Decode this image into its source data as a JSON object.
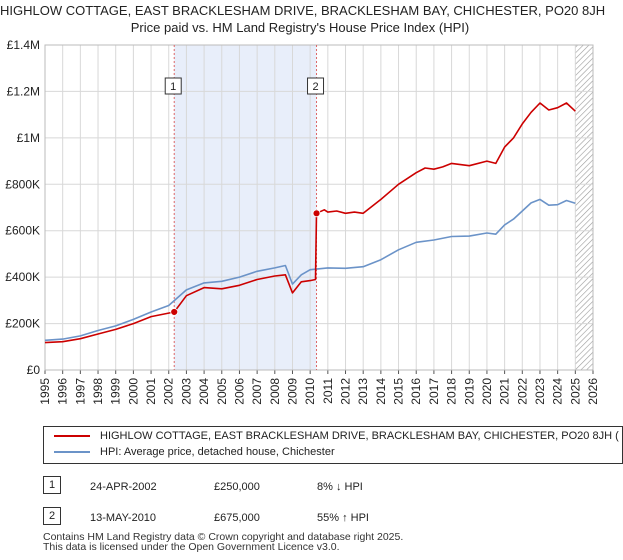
{
  "title": "HIGHLOW COTTAGE, EAST BRACKLESHAM DRIVE, BRACKLESHAM BAY, CHICHESTER, PO20 8JH",
  "subtitle": "Price paid vs. HM Land Registry's House Price Index (HPI)",
  "colors": {
    "property": "#cc0000",
    "hpi": "#6b93c8",
    "shade": "#e8eefa",
    "grid": "#d8d8d8",
    "marker_line": "#dd6666"
  },
  "chart_data": {
    "type": "line",
    "xlim": [
      1995,
      2026
    ],
    "ylim": [
      0,
      1400000
    ],
    "x_ticks": [
      "1995",
      "1996",
      "1997",
      "1998",
      "1999",
      "2000",
      "2001",
      "2002",
      "2003",
      "2004",
      "2005",
      "2006",
      "2007",
      "2008",
      "2009",
      "2010",
      "2011",
      "2012",
      "2013",
      "2014",
      "2015",
      "2016",
      "2017",
      "2018",
      "2019",
      "2020",
      "2021",
      "2022",
      "2023",
      "2024",
      "2025",
      "2026"
    ],
    "y_ticks": [
      {
        "value": 0,
        "label": "£0"
      },
      {
        "value": 200000,
        "label": "£200K"
      },
      {
        "value": 400000,
        "label": "£400K"
      },
      {
        "value": 600000,
        "label": "£600K"
      },
      {
        "value": 800000,
        "label": "£800K"
      },
      {
        "value": 1000000,
        "label": "£1M"
      },
      {
        "value": 1200000,
        "label": "£1.2M"
      },
      {
        "value": 1400000,
        "label": "£1.4M"
      }
    ],
    "shaded_region": [
      2002.31,
      2010.36
    ],
    "forecast_from": 2025.0,
    "series": [
      {
        "name": "HIGHLOW COTTAGE, EAST BRACKLESHAM DRIVE, BRACKLESHAM BAY, CHICHESTER, PO20 8JH (",
        "x": [
          1995,
          1996,
          1997,
          1998,
          1999,
          2000,
          2001,
          2002.31,
          2003,
          2004,
          2005,
          2006,
          2007,
          2008,
          2008.6,
          2009,
          2009.5,
          2010,
          2010.3,
          2010.36,
          2010.8,
          2011,
          2011.5,
          2012,
          2012.5,
          2013,
          2014,
          2015,
          2016,
          2016.5,
          2017,
          2017.5,
          2018,
          2019,
          2020,
          2020.5,
          2021,
          2021.5,
          2022,
          2022.5,
          2023,
          2023.5,
          2024,
          2024.5,
          2025.0
        ],
        "values": [
          118000,
          122000,
          135000,
          155000,
          175000,
          200000,
          230000,
          250000,
          320000,
          355000,
          350000,
          365000,
          390000,
          405000,
          410000,
          332000,
          380000,
          385000,
          390000,
          675000,
          690000,
          680000,
          685000,
          675000,
          680000,
          675000,
          735000,
          800000,
          850000,
          870000,
          865000,
          875000,
          890000,
          880000,
          900000,
          890000,
          960000,
          1000000,
          1060000,
          1110000,
          1150000,
          1120000,
          1130000,
          1150000,
          1115000
        ]
      },
      {
        "name": "HPI: Average price, detached house, Chichester",
        "x": [
          1995,
          1996,
          1997,
          1998,
          1999,
          2000,
          2001,
          2002,
          2003,
          2004,
          2005,
          2006,
          2007,
          2008,
          2008.6,
          2009,
          2009.5,
          2010,
          2011,
          2012,
          2013,
          2014,
          2015,
          2016,
          2017,
          2018,
          2019,
          2020,
          2020.5,
          2021,
          2021.5,
          2022,
          2022.5,
          2023,
          2023.5,
          2024,
          2024.5,
          2025.0
        ],
        "values": [
          128000,
          133000,
          147000,
          170000,
          190000,
          218000,
          250000,
          278000,
          345000,
          375000,
          382000,
          400000,
          425000,
          440000,
          450000,
          370000,
          410000,
          432000,
          440000,
          438000,
          445000,
          475000,
          518000,
          550000,
          560000,
          575000,
          577000,
          590000,
          585000,
          625000,
          650000,
          685000,
          720000,
          735000,
          710000,
          712000,
          730000,
          718000
        ]
      }
    ],
    "annotations": [
      {
        "label": "1",
        "x": 2002.31,
        "y": 250000
      },
      {
        "label": "2",
        "x": 2010.36,
        "y": 675000
      }
    ]
  },
  "legend": {
    "property_label": "HIGHLOW COTTAGE, EAST BRACKLESHAM DRIVE, BRACKLESHAM BAY, CHICHESTER, PO20 8JH (",
    "hpi_label": "HPI: Average price, detached house, Chichester"
  },
  "transactions": [
    {
      "num": "1",
      "date": "24-APR-2002",
      "price": "£250,000",
      "hpi": "8% ↓ HPI"
    },
    {
      "num": "2",
      "date": "13-MAY-2010",
      "price": "£675,000",
      "hpi": "55% ↑ HPI"
    }
  ],
  "footer": {
    "line1": "Contains HM Land Registry data © Crown copyright and database right 2025.",
    "line2": "This data is licensed under the Open Government Licence v3.0."
  }
}
